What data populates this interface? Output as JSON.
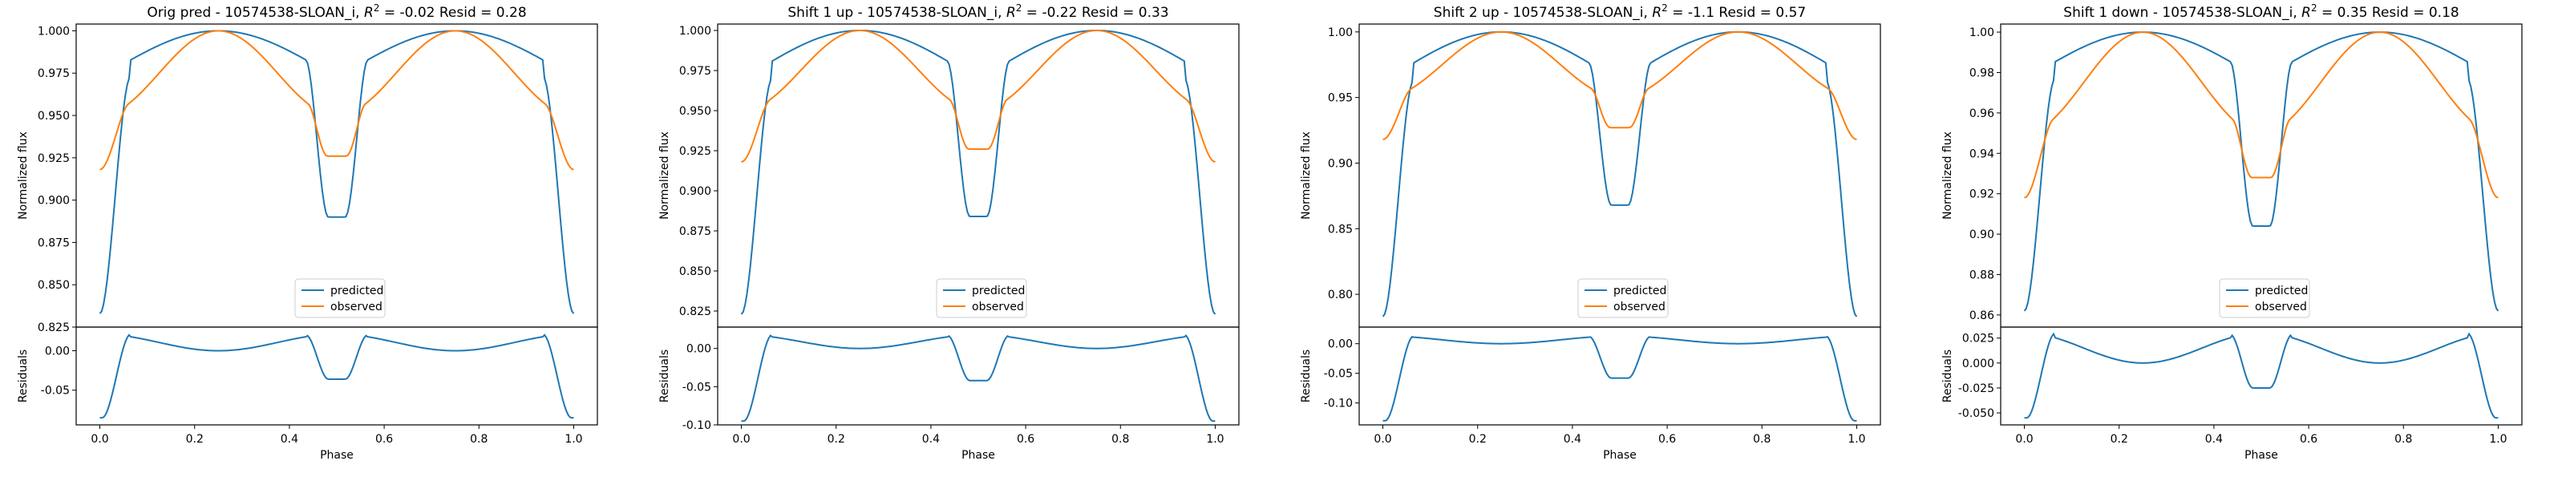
{
  "figure": {
    "type": "line",
    "xlabel": "Phase",
    "ylabel_top": "Normalized flux",
    "ylabel_bottom": "Residuals",
    "legend": [
      "predicted",
      "observed"
    ],
    "legend_position": "lower center",
    "colors": {
      "predicted": "#1f77b4",
      "observed": "#ff7f0e",
      "axes": "#000000",
      "background": "#ffffff"
    }
  },
  "chart_data": [
    {
      "type": "line",
      "title_prefix": "Orig pred - 10574538-SLOAN_i, ",
      "r2_symbol": "R",
      "r2_text": " = -0.02 Resid = 0.28",
      "xlim": [
        -0.05,
        1.05
      ],
      "xticks": [
        "0.0",
        "0.2",
        "0.4",
        "0.6",
        "0.8",
        "1.0"
      ],
      "top": {
        "ylim": [
          0.825,
          1.004
        ],
        "yticks": [
          "0.825",
          "0.850",
          "0.875",
          "0.900",
          "0.925",
          "0.950",
          "0.975",
          "1.000"
        ],
        "predicted": {
          "min": 0.833,
          "max": 1.0,
          "shoulder": 0.973,
          "eclipse": 0.89
        },
        "observed": {
          "min": 0.918,
          "max": 1.0,
          "eclipse": 0.926,
          "shoulder": 0.95
        }
      },
      "bottom": {
        "ylim": [
          -0.094,
          0.03
        ],
        "yticks": [
          "0.00",
          "-0.05"
        ],
        "residual": {
          "start": -0.085,
          "peak": 0.021,
          "center": 0.0,
          "eclipse": -0.036
        }
      }
    },
    {
      "type": "line",
      "title_prefix": "Shift 1 up - 10574538-SLOAN_i, ",
      "r2_symbol": "R",
      "r2_text": " = -0.22 Resid = 0.33",
      "xlim": [
        -0.05,
        1.05
      ],
      "xticks": [
        "0.0",
        "0.2",
        "0.4",
        "0.6",
        "0.8",
        "1.0"
      ],
      "top": {
        "ylim": [
          0.815,
          1.004
        ],
        "yticks": [
          "0.825",
          "0.850",
          "0.875",
          "0.900",
          "0.925",
          "0.950",
          "0.975",
          "1.000"
        ],
        "predicted": {
          "min": 0.823,
          "max": 1.0,
          "shoulder": 0.97,
          "eclipse": 0.884
        },
        "observed": {
          "min": 0.918,
          "max": 1.0,
          "eclipse": 0.926,
          "shoulder": 0.95
        }
      },
      "bottom": {
        "ylim": [
          -0.1,
          0.028
        ],
        "yticks": [
          "0.00",
          "-0.05",
          "-0.10"
        ],
        "residual": {
          "start": -0.095,
          "peak": 0.018,
          "center": 0.0,
          "eclipse": -0.042
        }
      }
    },
    {
      "type": "line",
      "title_prefix": "Shift 2 up - 10574538-SLOAN_i, ",
      "r2_symbol": "R",
      "r2_text": " = -1.1 Resid = 0.57",
      "xlim": [
        -0.05,
        1.05
      ],
      "xticks": [
        "0.0",
        "0.2",
        "0.4",
        "0.6",
        "0.8",
        "1.0"
      ],
      "top": {
        "ylim": [
          0.775,
          1.006
        ],
        "yticks": [
          "0.80",
          "0.85",
          "0.90",
          "0.95",
          "1.00"
        ],
        "predicted": {
          "min": 0.783,
          "max": 1.0,
          "shoulder": 0.963,
          "eclipse": 0.868
        },
        "observed": {
          "min": 0.918,
          "max": 1.0,
          "eclipse": 0.927,
          "shoulder": 0.95
        }
      },
      "bottom": {
        "ylim": [
          -0.137,
          0.028
        ],
        "yticks": [
          "0.00",
          "-0.05",
          "-0.10"
        ],
        "residual": {
          "start": -0.13,
          "peak": 0.013,
          "center": 0.0,
          "eclipse": -0.058
        }
      }
    },
    {
      "type": "line",
      "title_prefix": "Shift 1 down - 10574538-SLOAN_i, ",
      "r2_symbol": "R",
      "r2_text": " = 0.35 Resid = 0.18",
      "xlim": [
        -0.05,
        1.05
      ],
      "xticks": [
        "0.0",
        "0.2",
        "0.4",
        "0.6",
        "0.8",
        "1.0"
      ],
      "top": {
        "ylim": [
          0.854,
          1.004
        ],
        "yticks": [
          "0.86",
          "0.88",
          "0.90",
          "0.92",
          "0.94",
          "0.96",
          "0.98",
          "1.00"
        ],
        "predicted": {
          "min": 0.862,
          "max": 1.0,
          "shoulder": 0.977,
          "eclipse": 0.904
        },
        "observed": {
          "min": 0.918,
          "max": 1.0,
          "eclipse": 0.928,
          "shoulder": 0.95
        }
      },
      "bottom": {
        "ylim": [
          -0.062,
          0.036
        ],
        "yticks": [
          "0.025",
          "0.000",
          "-0.025",
          "-0.050"
        ],
        "residual": {
          "start": -0.055,
          "peak": 0.03,
          "center": 0.0,
          "eclipse": -0.025
        }
      }
    }
  ]
}
